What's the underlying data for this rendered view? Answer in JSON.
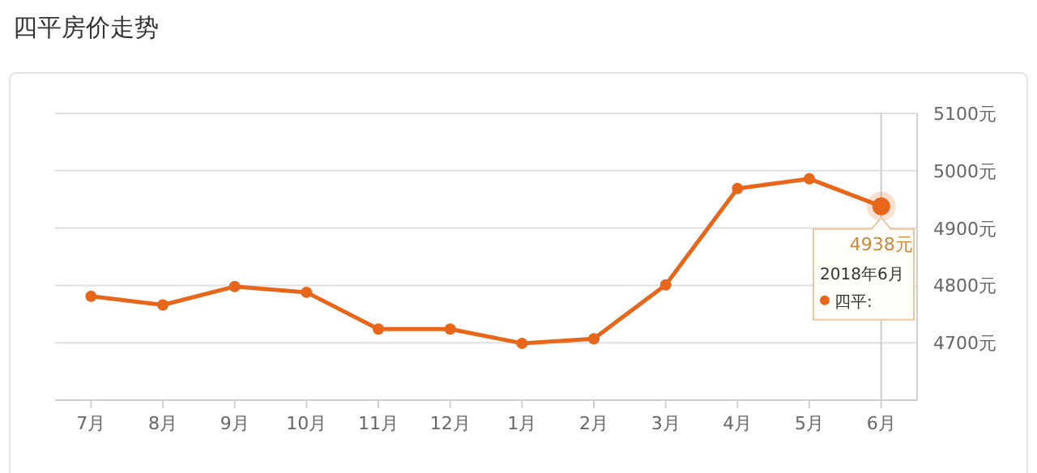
{
  "chart_data": {
    "type": "line",
    "title": "四平房价走势",
    "categories": [
      "7月",
      "8月",
      "9月",
      "10月",
      "11月",
      "12月",
      "1月",
      "2月",
      "3月",
      "4月",
      "5月",
      "6月"
    ],
    "series": [
      {
        "name": "四平:",
        "color": "#e8661a",
        "values": [
          4781,
          4766,
          4798,
          4788,
          4724,
          4724,
          4699,
          4707,
          4801,
          4969,
          4986,
          4938
        ],
        "value_labels": [
          null,
          null,
          null,
          null,
          null,
          null,
          null,
          null,
          null,
          null,
          null,
          "4938元"
        ]
      }
    ],
    "ylim": [
      4600,
      5100
    ],
    "yticks": [
      {
        "value": 4700,
        "label": "4700元"
      },
      {
        "value": 4800,
        "label": "4800元"
      },
      {
        "value": 4900,
        "label": "4900元"
      },
      {
        "value": 5000,
        "label": "5000元"
      },
      {
        "value": 5100,
        "label": "5100元"
      }
    ],
    "ref_lines": [
      {
        "axis": "x",
        "value": "6月",
        "color": "#cccccc"
      }
    ],
    "annotations": [
      "2018年6月"
    ],
    "grid": "y",
    "legend": "right",
    "marker": "circle",
    "line_style": "solid"
  }
}
